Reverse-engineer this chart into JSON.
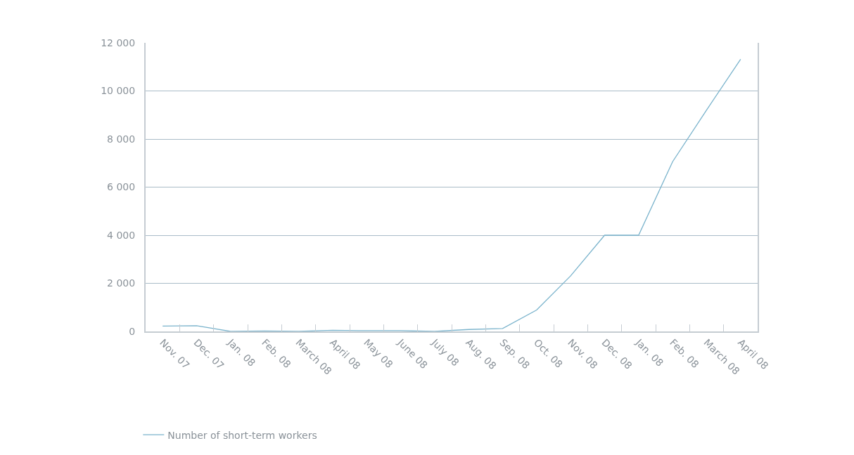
{
  "chart_data": {
    "type": "line",
    "categories": [
      "Nov. 07",
      "Dec. 07",
      "Jan. 08",
      "Feb. 08",
      "March 08",
      "April 08",
      "May 08",
      "June 08",
      "July 08",
      "Aug. 08",
      "Sep. 08",
      "Oct. 08",
      "Nov. 08",
      "Dec. 08",
      "Jan. 08",
      "Feb. 08",
      "March 08",
      "April 08"
    ],
    "series": [
      {
        "name": "Number of short-term workers",
        "color": "#7ab3cc",
        "values": [
          220,
          240,
          0,
          20,
          0,
          50,
          30,
          30,
          0,
          80,
          120,
          890,
          2310,
          4000,
          4000,
          7060,
          9210,
          11320
        ]
      }
    ],
    "ylim": [
      0,
      12000
    ],
    "yticks": [
      {
        "value": 0,
        "label": "0"
      },
      {
        "value": 2000,
        "label": "2 000"
      },
      {
        "value": 4000,
        "label": "4 000"
      },
      {
        "value": 6000,
        "label": "6 000"
      },
      {
        "value": 8000,
        "label": "8 000"
      },
      {
        "value": 10000,
        "label": "10 000"
      },
      {
        "value": 12000,
        "label": "12 000"
      }
    ],
    "grid": "y",
    "legend": "bottom left",
    "marker": "none",
    "line_style": "solid"
  }
}
